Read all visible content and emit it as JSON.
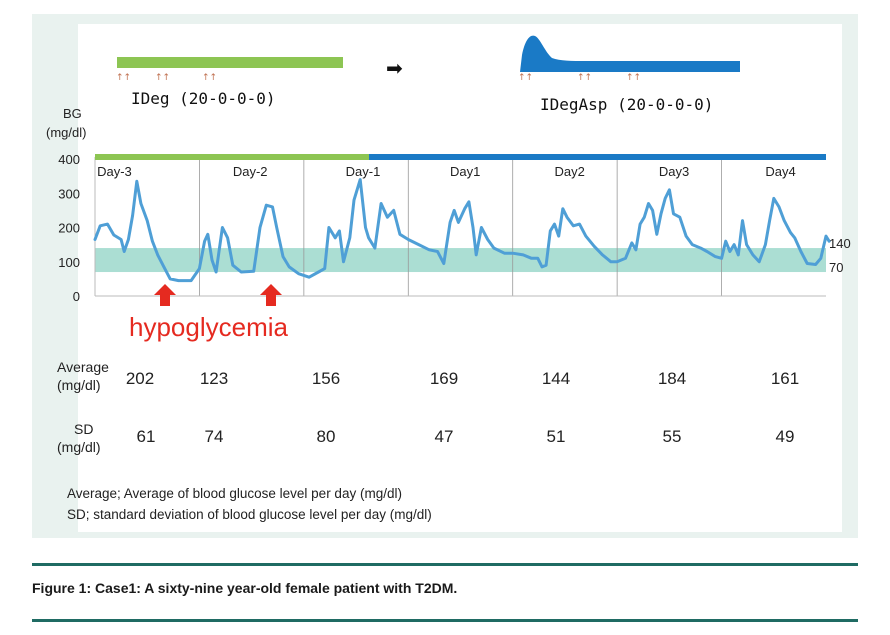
{
  "therapy": {
    "before_label": "IDeg (20-0-0-0)",
    "after_label": "IDegAsp (20-0-0-0)",
    "before_color": "#8dc553",
    "after_color": "#1a7ac6",
    "arrow_glyph": "➡",
    "injection_marks": "↑↑"
  },
  "axis": {
    "ylabel_line1": "BG",
    "ylabel_line2": "(mg/dl)",
    "ref_high": "140",
    "ref_low": "70"
  },
  "annotation": {
    "hypoglycemia": "hypoglycemia",
    "color": "#e52a20"
  },
  "stats": {
    "avg_label_line1": "Average",
    "avg_label_line2": "(mg/dl)",
    "sd_label_line1": "SD",
    "sd_label_line2": "(mg/dl)",
    "averages": [
      "202",
      "123",
      "156",
      "169",
      "144",
      "184",
      "161"
    ],
    "sds": [
      "61",
      "74",
      "80",
      "47",
      "51",
      "55",
      "49"
    ]
  },
  "legend": {
    "avg_note": "Average;  Average of blood glucose level per day (mg/dl)",
    "sd_note": "SD; standard deviation of blood glucose level per day (mg/dl)"
  },
  "caption": "Figure 1: Case1: A sixty-nine year-old female patient with T2DM.",
  "chart_data": {
    "type": "line",
    "title": "",
    "xlabel": "",
    "ylabel": "BG (mg/dl)",
    "ylim": [
      0,
      400
    ],
    "yticks": [
      "0",
      "100",
      "200",
      "300",
      "400"
    ],
    "xlim": [
      0,
      7
    ],
    "days": [
      "Day-3",
      "Day-2",
      "Day-1",
      "Day1",
      "Day2",
      "Day3",
      "Day4"
    ],
    "target_range": [
      70,
      140
    ],
    "series_color": "#4f9fd6",
    "band_color": "#8fd3c4",
    "series": [
      {
        "name": "Blood glucose",
        "points": [
          [
            0.0,
            165
          ],
          [
            0.05,
            205
          ],
          [
            0.12,
            210
          ],
          [
            0.18,
            178
          ],
          [
            0.25,
            165
          ],
          [
            0.28,
            130
          ],
          [
            0.32,
            165
          ],
          [
            0.36,
            235
          ],
          [
            0.4,
            335
          ],
          [
            0.44,
            270
          ],
          [
            0.5,
            220
          ],
          [
            0.55,
            160
          ],
          [
            0.6,
            120
          ],
          [
            0.66,
            85
          ],
          [
            0.72,
            50
          ],
          [
            0.8,
            45
          ],
          [
            0.92,
            45
          ],
          [
            1.0,
            80
          ],
          [
            1.05,
            160
          ],
          [
            1.08,
            180
          ],
          [
            1.12,
            105
          ],
          [
            1.16,
            70
          ],
          [
            1.22,
            200
          ],
          [
            1.27,
            170
          ],
          [
            1.32,
            90
          ],
          [
            1.4,
            70
          ],
          [
            1.52,
            72
          ],
          [
            1.58,
            200
          ],
          [
            1.64,
            265
          ],
          [
            1.7,
            260
          ],
          [
            1.74,
            200
          ],
          [
            1.8,
            115
          ],
          [
            1.86,
            85
          ],
          [
            1.95,
            65
          ],
          [
            2.05,
            55
          ],
          [
            2.14,
            70
          ],
          [
            2.2,
            80
          ],
          [
            2.24,
            200
          ],
          [
            2.3,
            170
          ],
          [
            2.34,
            190
          ],
          [
            2.38,
            100
          ],
          [
            2.44,
            170
          ],
          [
            2.48,
            280
          ],
          [
            2.54,
            340
          ],
          [
            2.59,
            200
          ],
          [
            2.62,
            170
          ],
          [
            2.68,
            140
          ],
          [
            2.74,
            270
          ],
          [
            2.8,
            230
          ],
          [
            2.86,
            250
          ],
          [
            2.92,
            180
          ],
          [
            3.0,
            165
          ],
          [
            3.1,
            150
          ],
          [
            3.2,
            135
          ],
          [
            3.28,
            130
          ],
          [
            3.34,
            95
          ],
          [
            3.4,
            215
          ],
          [
            3.44,
            250
          ],
          [
            3.48,
            215
          ],
          [
            3.54,
            255
          ],
          [
            3.58,
            275
          ],
          [
            3.62,
            200
          ],
          [
            3.65,
            120
          ],
          [
            3.7,
            200
          ],
          [
            3.76,
            165
          ],
          [
            3.82,
            140
          ],
          [
            3.92,
            125
          ],
          [
            4.0,
            125
          ],
          [
            4.1,
            120
          ],
          [
            4.18,
            110
          ],
          [
            4.24,
            110
          ],
          [
            4.28,
            85
          ],
          [
            4.32,
            90
          ],
          [
            4.36,
            190
          ],
          [
            4.4,
            210
          ],
          [
            4.44,
            175
          ],
          [
            4.48,
            255
          ],
          [
            4.52,
            230
          ],
          [
            4.58,
            205
          ],
          [
            4.64,
            210
          ],
          [
            4.7,
            175
          ],
          [
            4.78,
            145
          ],
          [
            4.86,
            120
          ],
          [
            4.94,
            100
          ],
          [
            5.0,
            100
          ],
          [
            5.08,
            110
          ],
          [
            5.14,
            155
          ],
          [
            5.18,
            135
          ],
          [
            5.22,
            210
          ],
          [
            5.26,
            230
          ],
          [
            5.3,
            270
          ],
          [
            5.34,
            250
          ],
          [
            5.38,
            180
          ],
          [
            5.42,
            240
          ],
          [
            5.46,
            285
          ],
          [
            5.5,
            310
          ],
          [
            5.54,
            240
          ],
          [
            5.6,
            230
          ],
          [
            5.66,
            175
          ],
          [
            5.72,
            150
          ],
          [
            5.8,
            140
          ],
          [
            5.86,
            130
          ],
          [
            5.94,
            115
          ],
          [
            6.0,
            110
          ],
          [
            6.04,
            160
          ],
          [
            6.08,
            130
          ],
          [
            6.12,
            150
          ],
          [
            6.16,
            120
          ],
          [
            6.2,
            220
          ],
          [
            6.24,
            150
          ],
          [
            6.3,
            120
          ],
          [
            6.36,
            100
          ],
          [
            6.42,
            150
          ],
          [
            6.46,
            220
          ],
          [
            6.5,
            285
          ],
          [
            6.55,
            260
          ],
          [
            6.6,
            220
          ],
          [
            6.66,
            185
          ],
          [
            6.7,
            170
          ],
          [
            6.76,
            130
          ],
          [
            6.82,
            95
          ],
          [
            6.9,
            92
          ],
          [
            6.95,
            110
          ],
          [
            7.0,
            175
          ],
          [
            7.03,
            160
          ]
        ]
      }
    ]
  }
}
